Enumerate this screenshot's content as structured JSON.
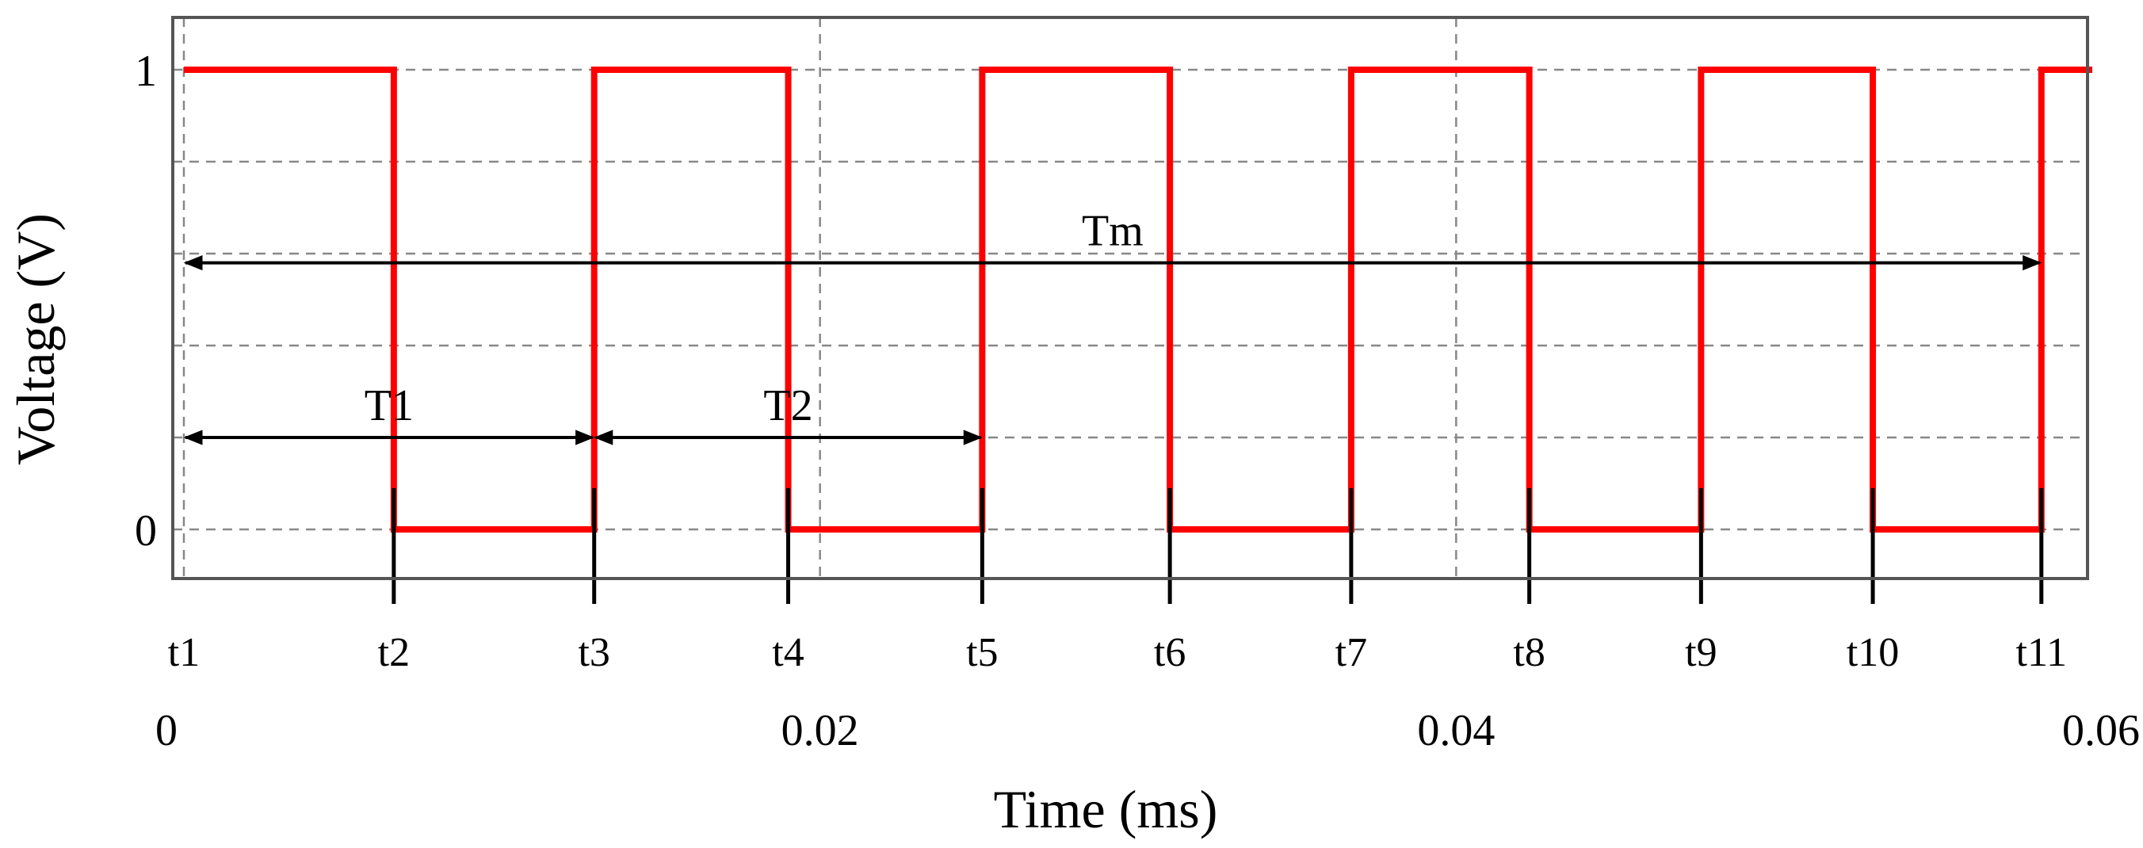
{
  "chart_data": {
    "type": "line",
    "xlabel": "Time (ms)",
    "ylabel": "Voltage (V)",
    "xlim": [
      0,
      0.06
    ],
    "ylim": [
      -0.12,
      1.05
    ],
    "x_ticks": [
      {
        "value": 0,
        "label": "0"
      },
      {
        "value": 0.02,
        "label": "0.02"
      },
      {
        "value": 0.04,
        "label": "0.04"
      },
      {
        "value": 0.06,
        "label": "0.06"
      }
    ],
    "y_ticks": [
      {
        "value": 0,
        "label": "0"
      },
      {
        "value": 1,
        "label": "1"
      }
    ],
    "grid": true,
    "grid_y": [
      0.2,
      0.4,
      0.6,
      0.8
    ],
    "series": [
      {
        "color": "#ff0000",
        "edges": [
          {
            "t": 0,
            "level": 1
          },
          {
            "t": 0.0066,
            "level": 0
          },
          {
            "t": 0.0129,
            "level": 1
          },
          {
            "t": 0.019,
            "level": 0
          },
          {
            "t": 0.0251,
            "level": 1
          },
          {
            "t": 0.031,
            "level": 0
          },
          {
            "t": 0.0367,
            "level": 1
          },
          {
            "t": 0.0423,
            "level": 0
          },
          {
            "t": 0.0477,
            "level": 1
          },
          {
            "t": 0.0531,
            "level": 0
          },
          {
            "t": 0.0584,
            "level": 1
          }
        ],
        "x_end": 0.06
      }
    ],
    "time_markers": [
      {
        "label": "t1",
        "t": 0
      },
      {
        "label": "t2",
        "t": 0.0066
      },
      {
        "label": "t3",
        "t": 0.0129
      },
      {
        "label": "t4",
        "t": 0.019
      },
      {
        "label": "t5",
        "t": 0.0251
      },
      {
        "label": "t6",
        "t": 0.031
      },
      {
        "label": "t7",
        "t": 0.0367
      },
      {
        "label": "t8",
        "t": 0.0423
      },
      {
        "label": "t9",
        "t": 0.0477
      },
      {
        "label": "t10",
        "t": 0.0531
      },
      {
        "label": "t11",
        "t": 0.0584
      }
    ],
    "annotations": [
      {
        "label": "T1",
        "from": 0,
        "to": 0.0129,
        "level": 0.2
      },
      {
        "label": "T2",
        "from": 0.0129,
        "to": 0.0251,
        "level": 0.2
      },
      {
        "label": "Tm",
        "from": 0,
        "to": 0.0584,
        "level": 0.58
      }
    ]
  }
}
